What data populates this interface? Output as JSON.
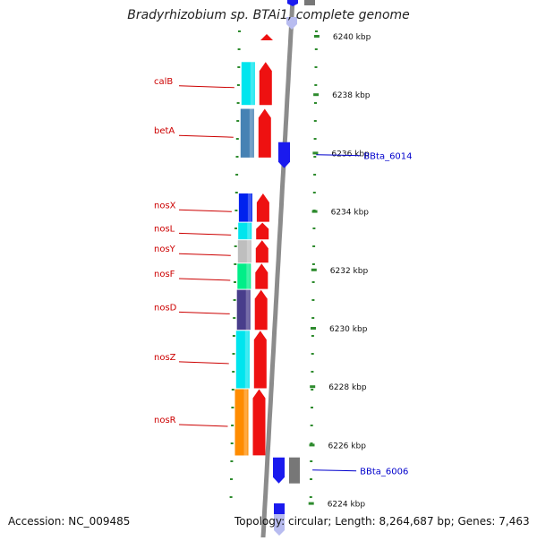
{
  "title": "Bradyrhizobium sp. BTAi1, complete genome",
  "accession": "Accession: NC_009485",
  "topology_summary": "Topology: circular; Length: 8,264,687 bp; Genes: 7,463",
  "colors": {
    "backbone": "#8c8c8c",
    "tick": "#2e8b2e",
    "gene_label": "#cc0000",
    "locus_label": "#0000cc",
    "forward_arrow": "#ee1111",
    "reverse_arrow": "#1a1aee",
    "grey_block": "#777777"
  },
  "scale": {
    "unit": "kbp",
    "ticks": [
      {
        "kbp": 6240,
        "label": "6240 kbp"
      },
      {
        "kbp": 6238,
        "label": "6238 kbp"
      },
      {
        "kbp": 6236,
        "label": "6236 kbp"
      },
      {
        "kbp": 6234,
        "label": "6234 kbp"
      },
      {
        "kbp": 6232,
        "label": "6232 kbp"
      },
      {
        "kbp": 6230,
        "label": "6230 kbp"
      },
      {
        "kbp": 6228,
        "label": "6228 kbp"
      },
      {
        "kbp": 6226,
        "label": "6226 kbp"
      },
      {
        "kbp": 6224,
        "label": "6224 kbp"
      }
    ]
  },
  "genes": [
    {
      "id": "calB",
      "label": "calB",
      "start_kbp": 6239.1,
      "end_kbp": 6237.6,
      "color": "#00e5ee"
    },
    {
      "id": "betA",
      "label": "betA",
      "start_kbp": 6237.5,
      "end_kbp": 6235.8,
      "color": "#4682b4"
    },
    {
      "id": "nosX",
      "label": "nosX",
      "start_kbp": 6234.6,
      "end_kbp": 6233.6,
      "color": "#0022ee"
    },
    {
      "id": "nosL",
      "label": "nosL",
      "start_kbp": 6233.6,
      "end_kbp": 6233.0,
      "color": "#00e5ee"
    },
    {
      "id": "nosY",
      "label": "nosY",
      "start_kbp": 6233.0,
      "end_kbp": 6232.2,
      "color": "#bebebe"
    },
    {
      "id": "nosF",
      "label": "nosF",
      "start_kbp": 6232.2,
      "end_kbp": 6231.3,
      "color": "#00ee88"
    },
    {
      "id": "nosD",
      "label": "nosD",
      "start_kbp": 6231.3,
      "end_kbp": 6229.9,
      "color": "#483d8b"
    },
    {
      "id": "nosZ",
      "label": "nosZ",
      "start_kbp": 6229.9,
      "end_kbp": 6227.9,
      "color": "#00e5ee"
    },
    {
      "id": "nosR",
      "label": "nosR",
      "start_kbp": 6227.9,
      "end_kbp": 6225.6,
      "color": "#ff8c00"
    }
  ],
  "loci": [
    {
      "id": "BBta_6014",
      "label": "BBta_6014",
      "kbp": 6235.9
    },
    {
      "id": "BBta_6006",
      "label": "BBta_6006",
      "kbp": 6225.1
    }
  ]
}
